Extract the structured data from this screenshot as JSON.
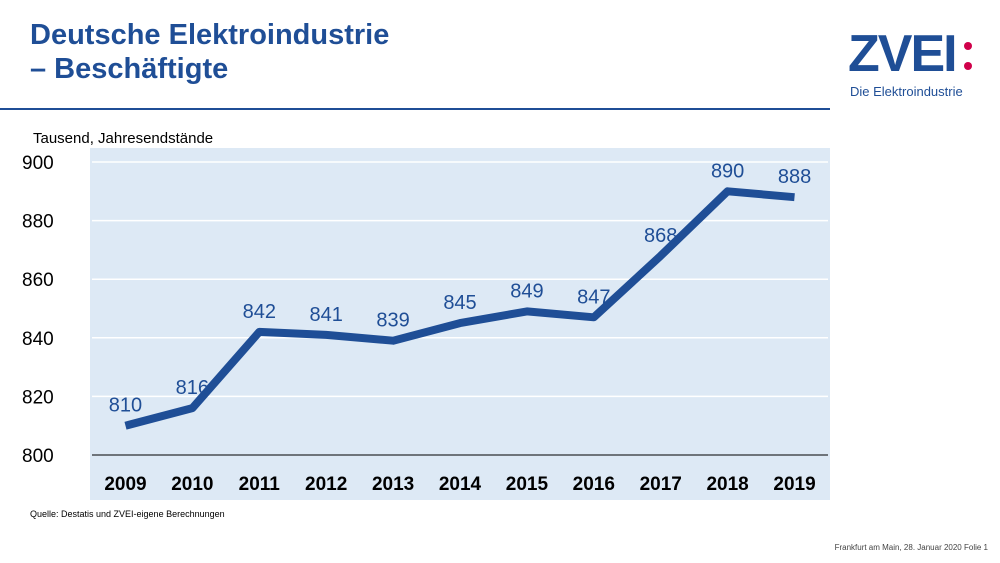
{
  "title": {
    "line1": "Deutsche Elektroindustrie",
    "line2": "– Beschäftigte"
  },
  "logo": {
    "mark": "ZVEI",
    "sub": "Die Elektroindustrie",
    "colors": {
      "mark": "#1f4e96",
      "colon": "#d0004a"
    }
  },
  "source": "Quelle: Destatis und ZVEI-eigene Berechnungen",
  "footer": "Frankfurt am Main, 28. Januar 2020  Folie 1",
  "chart_data": {
    "type": "line",
    "title": "",
    "ylabel": "Tausend, Jahresendstände",
    "xlabel": "",
    "categories": [
      "2009",
      "2010",
      "2011",
      "2012",
      "2013",
      "2014",
      "2015",
      "2016",
      "2017",
      "2018",
      "2019"
    ],
    "values": [
      810,
      816,
      842,
      841,
      839,
      845,
      849,
      847,
      868,
      890,
      888
    ],
    "ylim": [
      800,
      900
    ],
    "yticks": [
      800,
      820,
      840,
      860,
      880,
      900
    ],
    "grid": true,
    "legend": "none",
    "colors": {
      "line": "#1f4e96",
      "plot_bg": "#dde9f5",
      "grid": "#ffffff",
      "label": "#1f4e96"
    }
  }
}
